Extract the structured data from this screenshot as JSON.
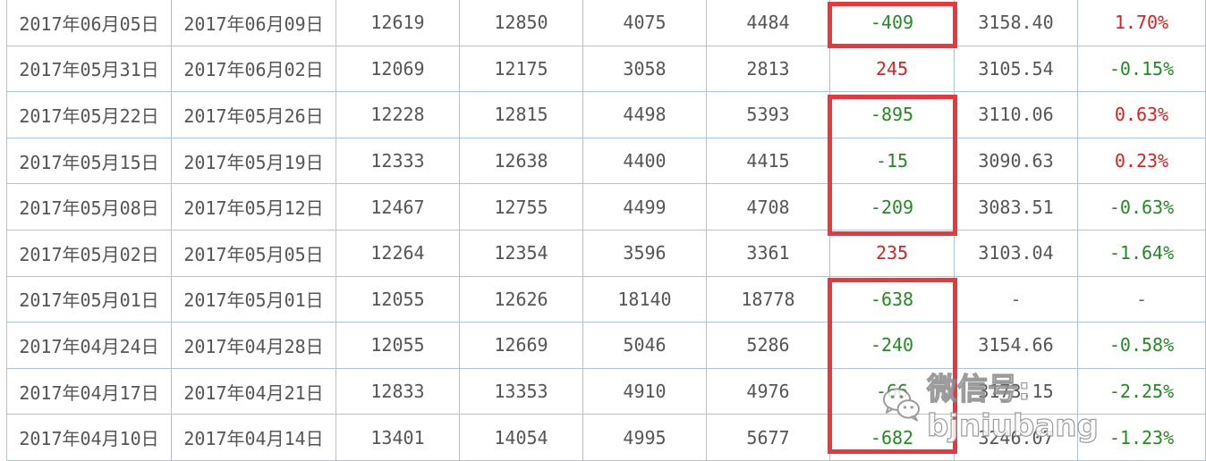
{
  "table": {
    "rows": [
      {
        "start": "2017年06月05日",
        "end": "2017年06月09日",
        "v1": "12619",
        "v2": "12850",
        "v3": "4075",
        "v4": "4484",
        "diff": "-409",
        "diff_color": "green",
        "index": "3158.40",
        "pct": "1.70%",
        "pct_color": "red"
      },
      {
        "start": "2017年05月31日",
        "end": "2017年06月02日",
        "v1": "12069",
        "v2": "12175",
        "v3": "3058",
        "v4": "2813",
        "diff": "245",
        "diff_color": "red",
        "index": "3105.54",
        "pct": "-0.15%",
        "pct_color": "green"
      },
      {
        "start": "2017年05月22日",
        "end": "2017年05月26日",
        "v1": "12228",
        "v2": "12815",
        "v3": "4498",
        "v4": "5393",
        "diff": "-895",
        "diff_color": "green",
        "index": "3110.06",
        "pct": "0.63%",
        "pct_color": "red"
      },
      {
        "start": "2017年05月15日",
        "end": "2017年05月19日",
        "v1": "12333",
        "v2": "12638",
        "v3": "4400",
        "v4": "4415",
        "diff": "-15",
        "diff_color": "green",
        "index": "3090.63",
        "pct": "0.23%",
        "pct_color": "red"
      },
      {
        "start": "2017年05月08日",
        "end": "2017年05月12日",
        "v1": "12467",
        "v2": "12755",
        "v3": "4499",
        "v4": "4708",
        "diff": "-209",
        "diff_color": "green",
        "index": "3083.51",
        "pct": "-0.63%",
        "pct_color": "green"
      },
      {
        "start": "2017年05月02日",
        "end": "2017年05月05日",
        "v1": "12264",
        "v2": "12354",
        "v3": "3596",
        "v4": "3361",
        "diff": "235",
        "diff_color": "red",
        "index": "3103.04",
        "pct": "-1.64%",
        "pct_color": "green"
      },
      {
        "start": "2017年05月01日",
        "end": "2017年05月01日",
        "v1": "12055",
        "v2": "12626",
        "v3": "18140",
        "v4": "18778",
        "diff": "-638",
        "diff_color": "green",
        "index": "-",
        "pct": "-",
        "pct_color": "gray"
      },
      {
        "start": "2017年04月24日",
        "end": "2017年04月28日",
        "v1": "12055",
        "v2": "12669",
        "v3": "5046",
        "v4": "5286",
        "diff": "-240",
        "diff_color": "green",
        "index": "3154.66",
        "pct": "-0.58%",
        "pct_color": "green"
      },
      {
        "start": "2017年04月17日",
        "end": "2017年04月21日",
        "v1": "12833",
        "v2": "13353",
        "v3": "4910",
        "v4": "4976",
        "diff": "-66",
        "diff_color": "green",
        "index": "3173.15",
        "pct": "-2.25%",
        "pct_color": "green"
      },
      {
        "start": "2017年04月10日",
        "end": "2017年04月14日",
        "v1": "13401",
        "v2": "14054",
        "v3": "4995",
        "v4": "5677",
        "diff": "-682",
        "diff_color": "green",
        "index": "3246.07",
        "pct": "-1.23%",
        "pct_color": "green"
      }
    ]
  },
  "colors": {
    "red": "#e02020",
    "green": "#228b22",
    "grid": "#aac3e2",
    "highlight": "#e8383d"
  },
  "watermark": {
    "icon": "wechat-icon",
    "text": "微信号: bjniubang"
  }
}
